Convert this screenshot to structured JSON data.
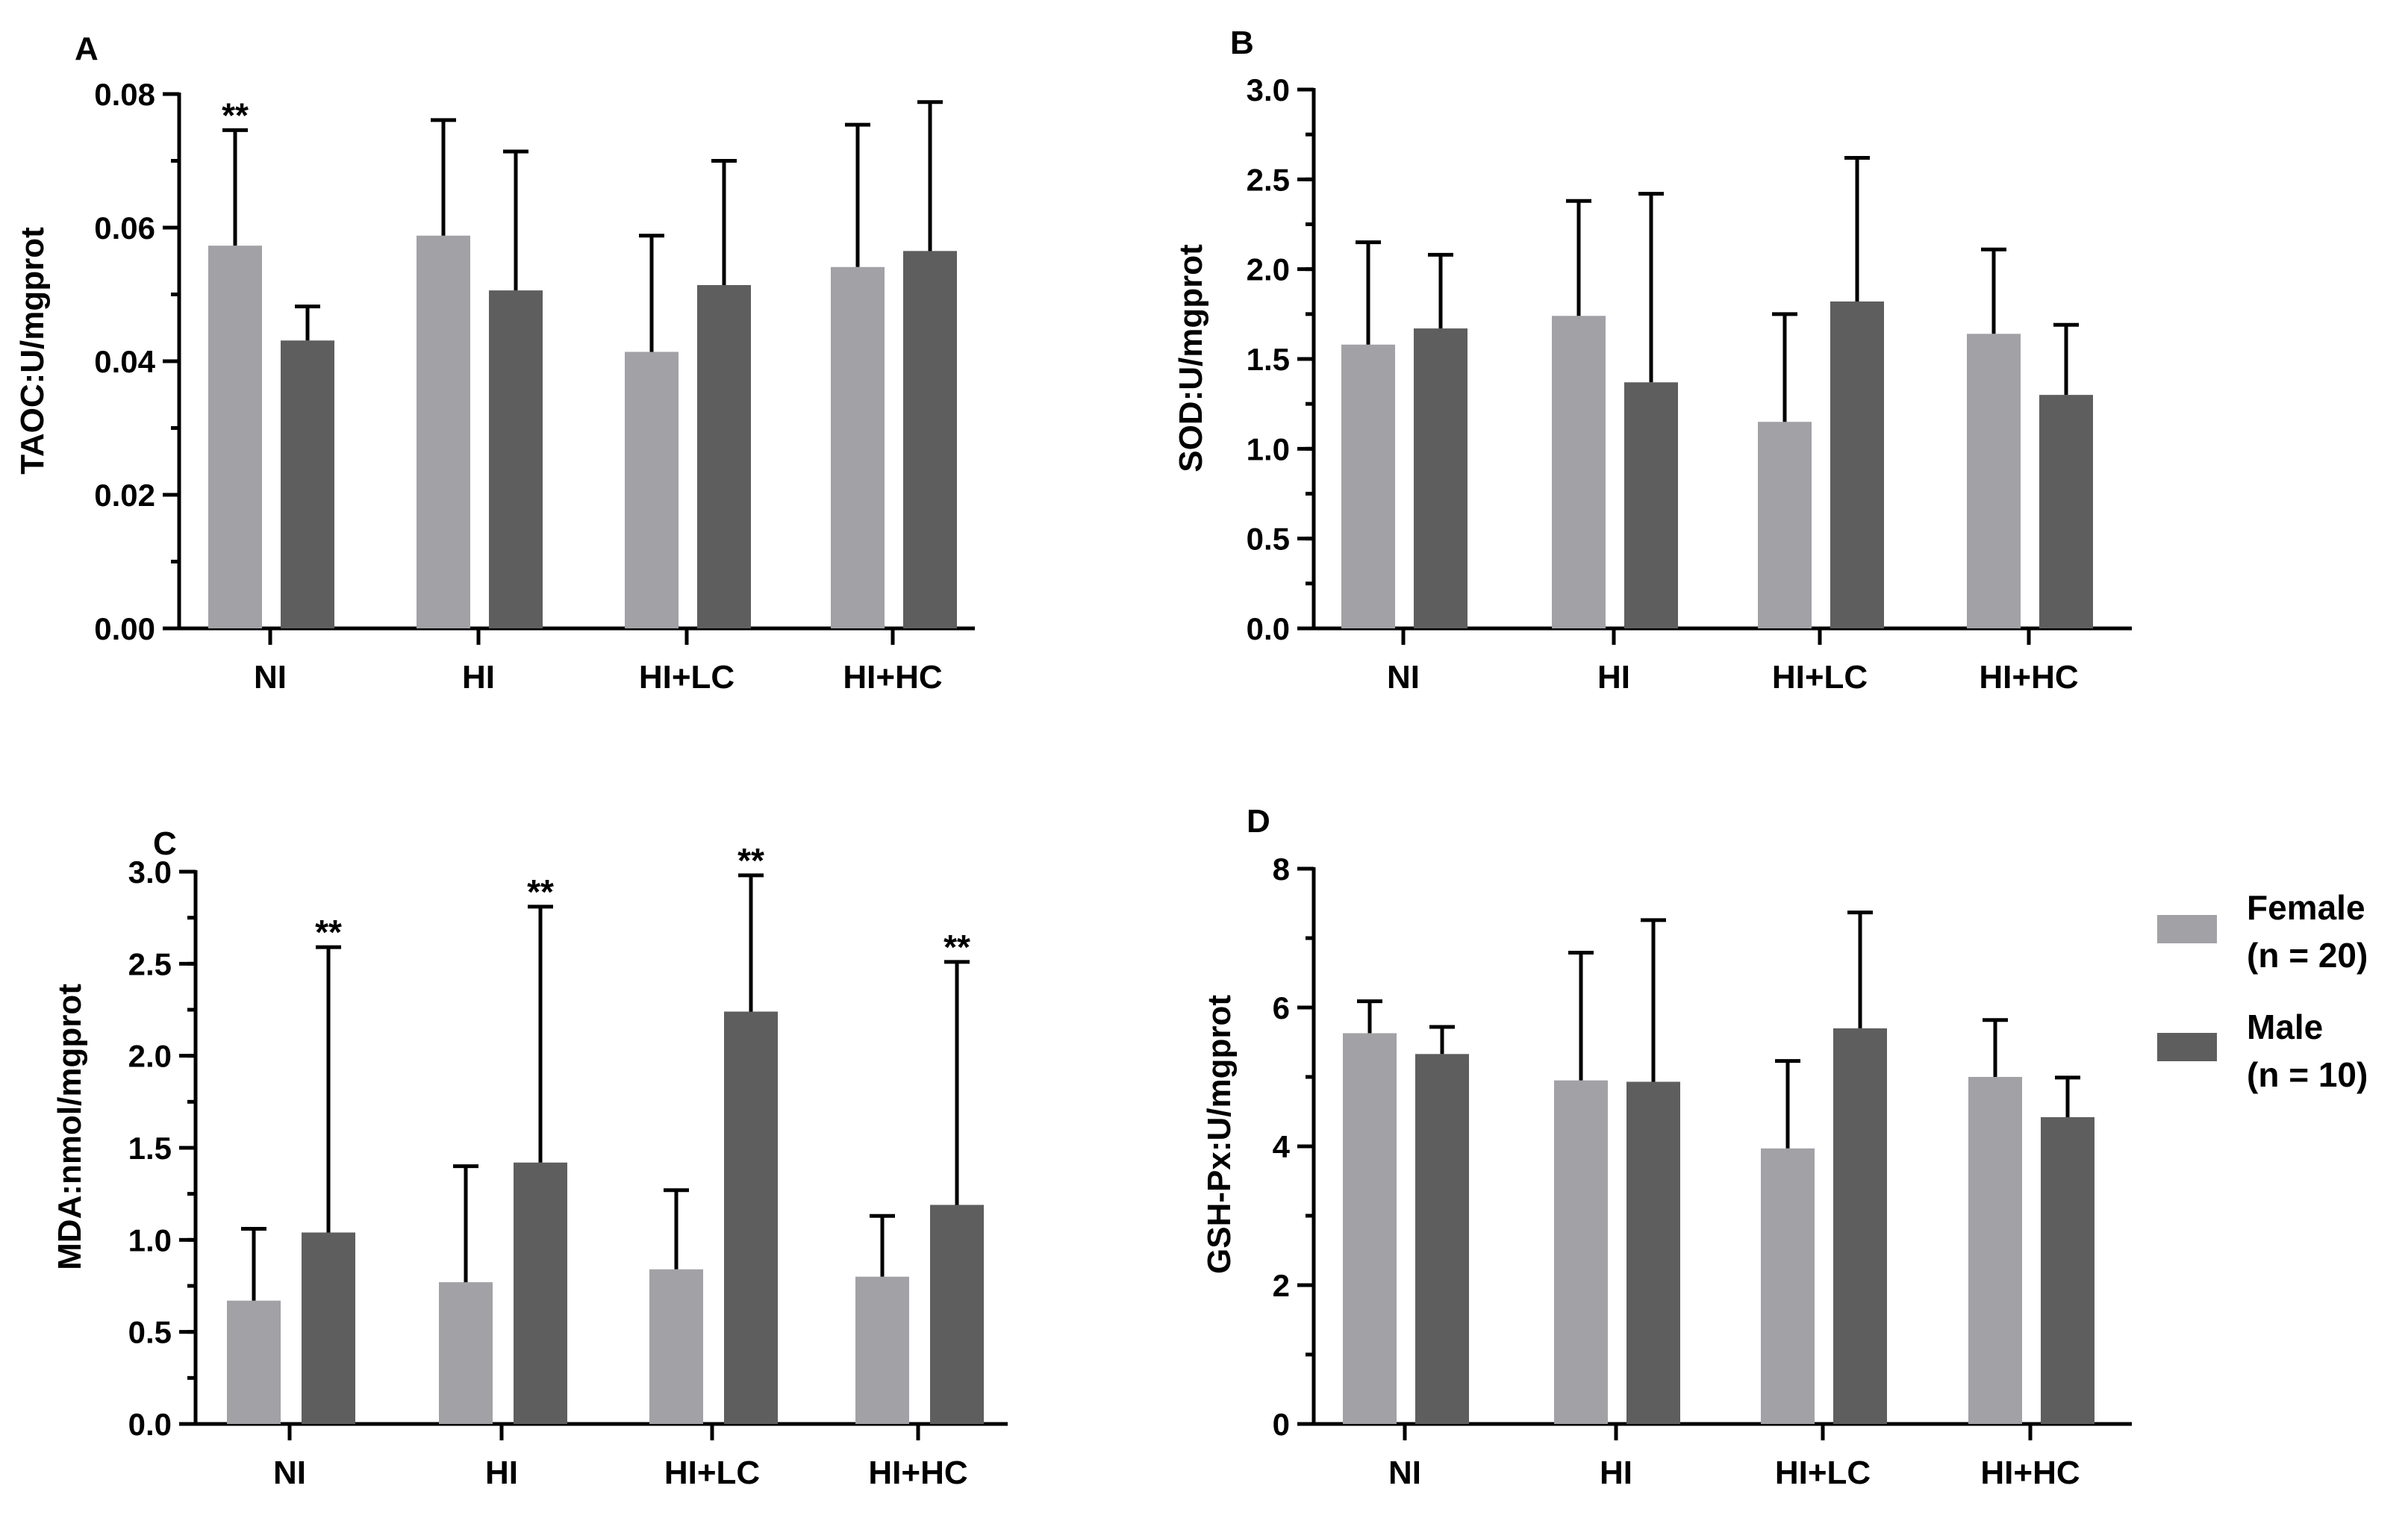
{
  "colors": {
    "female": "#a2a1a6",
    "male": "#5e5e5e",
    "axis": "#000000"
  },
  "legend": [
    {
      "key": "female",
      "line1": "Female",
      "line2": "(n = 20)"
    },
    {
      "key": "male",
      "line1": "Male",
      "line2": "(n = 10)"
    }
  ],
  "chart_data": [
    {
      "panel": "A",
      "type": "bar",
      "ylabel": "TAOC:U/mgprot",
      "ylim": [
        0,
        0.08
      ],
      "major_ticks": [
        "0.00",
        "0.02",
        "0.04",
        "0.06",
        "0.08"
      ],
      "minor_step": 0.01,
      "categories": [
        "NI",
        "HI",
        "HI+LC",
        "HI+HC"
      ],
      "series": [
        {
          "name": "Female (n = 20)",
          "key": "female",
          "values": [
            0.0573,
            0.0588,
            0.0414,
            0.0541
          ],
          "errors": [
            0.0173,
            0.0173,
            0.0174,
            0.0213
          ],
          "sig": [
            "**",
            "",
            "",
            ""
          ]
        },
        {
          "name": "Male (n = 10)",
          "key": "male",
          "values": [
            0.0431,
            0.0506,
            0.0514,
            0.0565
          ],
          "errors": [
            0.0051,
            0.0208,
            0.0186,
            0.0223
          ],
          "sig": [
            "",
            "",
            "",
            ""
          ]
        }
      ]
    },
    {
      "panel": "B",
      "type": "bar",
      "ylabel": "SOD:U/mgprot",
      "ylim": [
        0,
        3.0
      ],
      "major_ticks": [
        "0.0",
        "0.5",
        "1.0",
        "1.5",
        "2.0",
        "2.5",
        "3.0"
      ],
      "minor_step": 0.25,
      "categories": [
        "NI",
        "HI",
        "HI+LC",
        "HI+HC"
      ],
      "series": [
        {
          "name": "Female (n = 20)",
          "key": "female",
          "values": [
            1.58,
            1.74,
            1.15,
            1.64
          ],
          "errors": [
            0.57,
            0.64,
            0.6,
            0.47
          ],
          "sig": [
            "",
            "",
            "",
            ""
          ]
        },
        {
          "name": "Male (n = 10)",
          "key": "male",
          "values": [
            1.67,
            1.37,
            1.82,
            1.3
          ],
          "errors": [
            0.41,
            1.05,
            0.8,
            0.39
          ],
          "sig": [
            "",
            "",
            "",
            ""
          ]
        }
      ]
    },
    {
      "panel": "C",
      "type": "bar",
      "ylabel": "MDA:nmol/mgprot",
      "ylim": [
        0,
        3.0
      ],
      "major_ticks": [
        "0.0",
        "0.5",
        "1.0",
        "1.5",
        "2.0",
        "2.5",
        "3.0"
      ],
      "minor_step": 0.25,
      "categories": [
        "NI",
        "HI",
        "HI+LC",
        "HI+HC"
      ],
      "series": [
        {
          "name": "Female (n = 20)",
          "key": "female",
          "values": [
            0.67,
            0.77,
            0.84,
            0.8
          ],
          "errors": [
            0.39,
            0.63,
            0.43,
            0.33
          ],
          "sig": [
            "",
            "",
            "",
            ""
          ]
        },
        {
          "name": "Male (n = 10)",
          "key": "male",
          "values": [
            1.04,
            1.42,
            2.24,
            1.19
          ],
          "errors": [
            1.55,
            1.39,
            0.74,
            1.32
          ],
          "sig": [
            "**",
            "**",
            "**",
            "**"
          ]
        }
      ]
    },
    {
      "panel": "D",
      "type": "bar",
      "ylabel": "GSH-Px:U/mgprot",
      "ylim": [
        0,
        8
      ],
      "major_ticks": [
        "0",
        "2",
        "4",
        "6",
        "8"
      ],
      "minor_step": 1,
      "categories": [
        "NI",
        "HI",
        "HI+LC",
        "HI+HC"
      ],
      "series": [
        {
          "name": "Female (n = 20)",
          "key": "female",
          "values": [
            5.63,
            4.95,
            3.97,
            5.0
          ],
          "errors": [
            0.46,
            1.84,
            1.26,
            0.82
          ],
          "sig": [
            "",
            "",
            "",
            ""
          ]
        },
        {
          "name": "Male (n = 10)",
          "key": "male",
          "values": [
            5.33,
            4.93,
            5.7,
            4.42
          ],
          "errors": [
            0.39,
            2.33,
            1.67,
            0.57
          ],
          "sig": [
            "",
            "",
            "",
            ""
          ]
        }
      ]
    }
  ]
}
